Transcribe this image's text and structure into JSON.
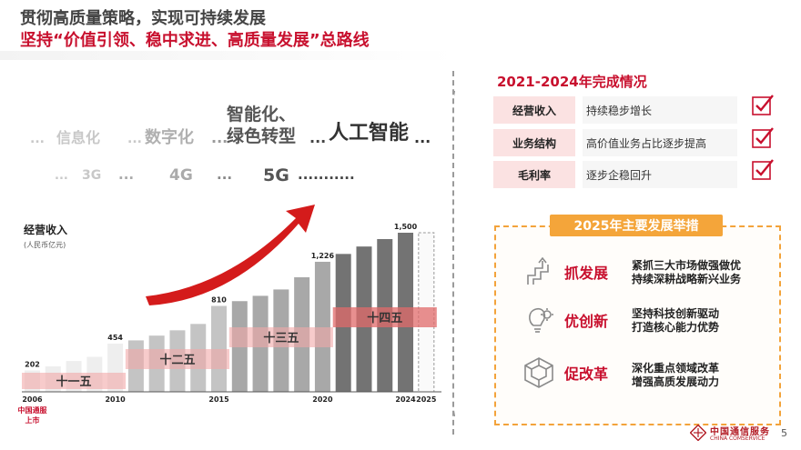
{
  "header": {
    "line1": "贯彻高质量策略，实现可持续发展",
    "line2": "坚持“价值引领、稳中求进、高质量发展”总路线"
  },
  "tech_stages": {
    "row1": [
      {
        "text": "...",
        "color": "#c8c8c8",
        "size": 14
      },
      {
        "text": "信息化",
        "color": "#c8c8c8",
        "size": 16
      },
      {
        "text": "...",
        "color": "#c8c8c8",
        "size": 14
      },
      {
        "text": "数字化",
        "color": "#b0b0b0",
        "size": 18
      },
      {
        "text": "...",
        "color": "#9a9a9a",
        "size": 16
      },
      {
        "text": "智能化、",
        "color": "#555555",
        "size": 19
      },
      {
        "text": "绿色转型",
        "color": "#555555",
        "size": 19
      },
      {
        "text": "...",
        "color": "#444444",
        "size": 16
      },
      {
        "text": "人工智能",
        "color": "#333333",
        "size": 22
      },
      {
        "text": "...",
        "color": "#333333",
        "size": 16
      }
    ],
    "row2": [
      {
        "text": "...",
        "color": "#c8c8c8",
        "size": 13
      },
      {
        "text": "3G",
        "color": "#c8c8c8",
        "size": 14
      },
      {
        "text": "...",
        "color": "#aaaaaa",
        "size": 15
      },
      {
        "text": "4G",
        "color": "#aaaaaa",
        "size": 17
      },
      {
        "text": "...",
        "color": "#888888",
        "size": 15
      },
      {
        "text": "5G",
        "color": "#555555",
        "size": 19
      },
      {
        "text": "...........",
        "color": "#444444",
        "size": 15
      }
    ]
  },
  "chart_data": {
    "type": "bar",
    "title": "经营收入",
    "unit": "(人民币亿元)",
    "x": [
      2006,
      2007,
      2008,
      2009,
      2010,
      2011,
      2012,
      2013,
      2014,
      2015,
      2016,
      2017,
      2018,
      2019,
      2020,
      2021,
      2022,
      2023,
      2024
    ],
    "values": [
      202,
      240,
      290,
      330,
      454,
      485,
      530,
      580,
      640,
      810,
      855,
      905,
      965,
      1080,
      1226,
      1300,
      1370,
      1440,
      1500
    ],
    "projected": {
      "x": 2025
    },
    "labeled_points": [
      {
        "x": 2006,
        "label": "202"
      },
      {
        "x": 2010,
        "label": "454"
      },
      {
        "x": 2015,
        "label": "810"
      },
      {
        "x": 2020,
        "label": "1,226"
      },
      {
        "x": 2024,
        "label": "1,500"
      }
    ],
    "xtick_labels": [
      "2006",
      "2010",
      "2015",
      "2020",
      "2024",
      "2025"
    ],
    "periods": [
      {
        "label": "十一五",
        "from": 2006,
        "to": 2010
      },
      {
        "label": "十二五",
        "from": 2011,
        "to": 2015
      },
      {
        "label": "十三五",
        "from": 2016,
        "to": 2020
      },
      {
        "label": "十四五",
        "from": 2021,
        "to": 2025
      }
    ],
    "footnote": "中国通服上市",
    "colors": {
      "early": "#eeeeee",
      "mid": "#c4c4c4",
      "late": "#737373",
      "accent": "#d41b1b"
    }
  },
  "results": {
    "title": "2021-2024年完成情况",
    "rows": [
      {
        "label": "经营收入",
        "desc": "持续稳步增长"
      },
      {
        "label": "业务结构",
        "desc": "高价值业务占比逐步提高"
      },
      {
        "label": "毛利率",
        "desc": "逐步企稳回升"
      }
    ]
  },
  "plans": {
    "title": "2025年主要发展举措",
    "items": [
      {
        "name": "抓发展",
        "icon": "ladder-arrow-icon",
        "lines": [
          "紧抓三大市场做强做优",
          "持续深耕战略新兴业务"
        ]
      },
      {
        "name": "优创新",
        "icon": "lightbulb-gear-icon",
        "lines": [
          "坚持科技创新驱动",
          "打造核心能力优势"
        ]
      },
      {
        "name": "促改革",
        "icon": "cube-icon",
        "lines": [
          "深化重点领域改革",
          "增强高质发展动力"
        ]
      }
    ]
  },
  "footer": {
    "logo_cn": "中国通信服务",
    "logo_en": "CHINA COMSERVICE",
    "page": "5"
  }
}
